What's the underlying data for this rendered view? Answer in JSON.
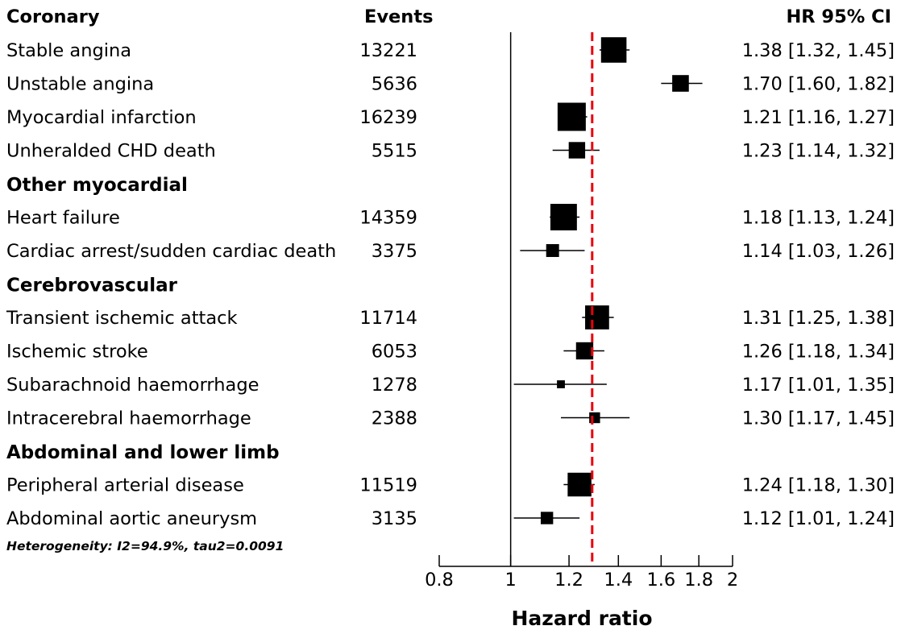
{
  "chart_data": {
    "type": "forest",
    "columns": {
      "label": "Coronary",
      "events": "Events",
      "estimate": "HR 95% CI"
    },
    "xlabel": "Hazard ratio",
    "xscale": "log",
    "xlim": [
      0.8,
      2
    ],
    "xticks": [
      "0.8",
      "1",
      "1.2",
      "1.4",
      "1.6",
      "1.8",
      "2"
    ],
    "tick_values": [
      0.8,
      1,
      1.2,
      1.4,
      1.6,
      1.8,
      2
    ],
    "null_line": 1,
    "pooled_estimate": 1.29,
    "pooled_line_color": "#e8000b",
    "marker_color": "#000000",
    "heterogeneity": "Heterogeneity: I2=94.9%, tau2=0.0091",
    "rows": [
      {
        "kind": "study",
        "label": "Stable angina",
        "events": "13221",
        "hr": 1.38,
        "lo": 1.32,
        "hi": 1.45,
        "ci_text": "1.38 [1.32, 1.45]"
      },
      {
        "kind": "study",
        "label": "Unstable angina",
        "events": "5636",
        "hr": 1.7,
        "lo": 1.6,
        "hi": 1.82,
        "ci_text": "1.70 [1.60, 1.82]"
      },
      {
        "kind": "study",
        "label": "Myocardial infarction",
        "events": "16239",
        "hr": 1.21,
        "lo": 1.16,
        "hi": 1.27,
        "ci_text": "1.21 [1.16, 1.27]"
      },
      {
        "kind": "study",
        "label": "Unheralded CHD death",
        "events": "5515",
        "hr": 1.23,
        "lo": 1.14,
        "hi": 1.32,
        "ci_text": "1.23 [1.14, 1.32]"
      },
      {
        "kind": "group",
        "label": "Other myocardial"
      },
      {
        "kind": "study",
        "label": "Heart failure",
        "events": "14359",
        "hr": 1.18,
        "lo": 1.13,
        "hi": 1.24,
        "ci_text": "1.18 [1.13, 1.24]"
      },
      {
        "kind": "study",
        "label": "Cardiac arrest/sudden cardiac death",
        "events": "3375",
        "hr": 1.14,
        "lo": 1.03,
        "hi": 1.26,
        "ci_text": "1.14 [1.03, 1.26]"
      },
      {
        "kind": "group",
        "label": "Cerebrovascular"
      },
      {
        "kind": "study",
        "label": "Transient ischemic attack",
        "events": "11714",
        "hr": 1.31,
        "lo": 1.25,
        "hi": 1.38,
        "ci_text": "1.31 [1.25, 1.38]"
      },
      {
        "kind": "study",
        "label": "Ischemic stroke",
        "events": "6053",
        "hr": 1.26,
        "lo": 1.18,
        "hi": 1.34,
        "ci_text": "1.26 [1.18, 1.34]"
      },
      {
        "kind": "study",
        "label": "Subarachnoid haemorrhage",
        "events": "1278",
        "hr": 1.17,
        "lo": 1.01,
        "hi": 1.35,
        "ci_text": "1.17 [1.01, 1.35]"
      },
      {
        "kind": "study",
        "label": "Intracerebral haemorrhage",
        "events": "2388",
        "hr": 1.3,
        "lo": 1.17,
        "hi": 1.45,
        "ci_text": "1.30 [1.17, 1.45]"
      },
      {
        "kind": "group",
        "label": "Abdominal and lower limb"
      },
      {
        "kind": "study",
        "label": "Peripheral arterial disease",
        "events": "11519",
        "hr": 1.24,
        "lo": 1.18,
        "hi": 1.3,
        "ci_text": "1.24 [1.18, 1.30]"
      },
      {
        "kind": "study",
        "label": "Abdominal aortic aneurysm",
        "events": "3135",
        "hr": 1.12,
        "lo": 1.01,
        "hi": 1.24,
        "ci_text": "1.12 [1.01, 1.24]"
      }
    ]
  }
}
